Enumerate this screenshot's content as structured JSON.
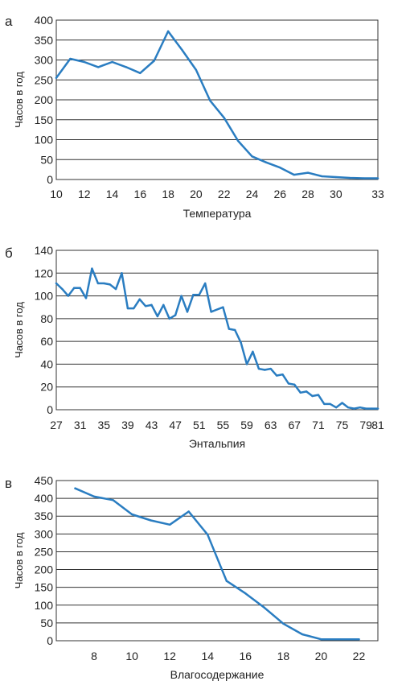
{
  "colors": {
    "line": "#2a7dc1",
    "grid": "#333333"
  },
  "chart_data": [
    {
      "type": "line",
      "panel_label": "а",
      "xlabel": "Температура",
      "ylabel": "Часов в год",
      "ylim": [
        0,
        400
      ],
      "yticks": [
        0,
        50,
        100,
        150,
        200,
        250,
        300,
        350,
        400
      ],
      "xlim": [
        10,
        33
      ],
      "xticks": [
        10,
        12,
        14,
        16,
        18,
        20,
        22,
        24,
        26,
        28,
        30,
        33
      ],
      "grid": true,
      "x": [
        10,
        11,
        12,
        13,
        14,
        15,
        16,
        17,
        18,
        19,
        20,
        21,
        22,
        23,
        24,
        25,
        26,
        27,
        28,
        29,
        30,
        31,
        32,
        33
      ],
      "values": [
        255,
        303,
        295,
        282,
        295,
        282,
        267,
        298,
        372,
        325,
        275,
        198,
        155,
        97,
        58,
        43,
        30,
        12,
        17,
        8,
        6,
        4,
        3,
        3
      ]
    },
    {
      "type": "line",
      "panel_label": "б",
      "xlabel": "Энтальпия",
      "ylabel": "Часов в год",
      "ylim": [
        0,
        140
      ],
      "yticks": [
        0,
        20,
        40,
        60,
        80,
        100,
        120,
        140
      ],
      "xlim": [
        27,
        81
      ],
      "xticks": [
        27,
        31,
        35,
        39,
        43,
        47,
        51,
        55,
        59,
        63,
        67,
        71,
        75,
        79,
        81
      ],
      "grid": true,
      "x": [
        27,
        28,
        29,
        30,
        31,
        32,
        33,
        34,
        35,
        36,
        37,
        38,
        39,
        40,
        41,
        42,
        43,
        44,
        45,
        46,
        47,
        48,
        49,
        50,
        51,
        52,
        53,
        54,
        55,
        56,
        57,
        58,
        59,
        60,
        61,
        62,
        63,
        64,
        65,
        66,
        67,
        68,
        69,
        70,
        71,
        72,
        73,
        74,
        75,
        76,
        77,
        78,
        79,
        80,
        81
      ],
      "values": [
        111,
        106,
        100,
        107,
        107,
        98,
        124,
        111,
        111,
        110,
        106,
        120,
        89,
        89,
        97,
        91,
        92,
        82,
        92,
        80,
        83,
        100,
        86,
        101,
        101,
        111,
        86,
        88,
        90,
        71,
        70,
        59,
        40,
        51,
        36,
        35,
        36,
        30,
        31,
        23,
        22,
        15,
        16,
        12,
        13,
        5,
        5,
        2,
        6,
        2,
        1,
        2,
        1,
        1,
        1
      ]
    },
    {
      "type": "line",
      "panel_label": "в",
      "xlabel": "Влагосодержание",
      "ylabel": "Часов в год",
      "ylim": [
        0,
        450
      ],
      "yticks": [
        0,
        50,
        100,
        150,
        200,
        250,
        300,
        350,
        400,
        450
      ],
      "xlim": [
        6,
        23
      ],
      "xticks": [
        8,
        10,
        12,
        14,
        16,
        18,
        20,
        22
      ],
      "grid": true,
      "x": [
        7,
        8,
        9,
        10,
        11,
        12,
        13,
        14,
        15,
        16,
        17,
        18,
        19,
        20,
        21,
        22
      ],
      "values": [
        428,
        405,
        395,
        355,
        338,
        326,
        363,
        298,
        168,
        133,
        93,
        48,
        18,
        4,
        4,
        4
      ]
    }
  ]
}
